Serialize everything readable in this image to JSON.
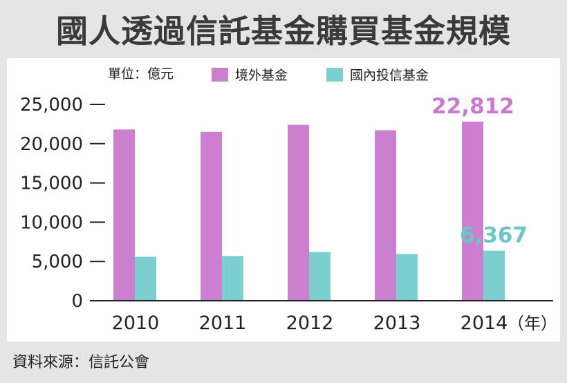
{
  "title": "國人透過信託基金購買基金規模",
  "source": "資料來源：信託公會",
  "colors": {
    "overseas": "#cc7fcf",
    "domestic": "#7ccfcf",
    "overseas_label": "#c87ad0",
    "domestic_label": "#6cc6c6",
    "axis": "#222222",
    "background": "#e5e5e5",
    "panel": "#ffffff"
  },
  "chart_data": {
    "type": "bar",
    "title": "國人透過信託基金購買基金規模",
    "unit_label": "單位：億元",
    "xlabel": "",
    "x_unit": "（年）",
    "ylabel": "",
    "ylim": [
      0,
      25000
    ],
    "yticks": [
      0,
      5000,
      10000,
      15000,
      20000,
      25000
    ],
    "ytick_labels": [
      "0",
      "5,000",
      "10,000",
      "15,000",
      "20,000",
      "25,000"
    ],
    "categories": [
      "2010",
      "2011",
      "2012",
      "2013",
      "2014"
    ],
    "series": [
      {
        "name": "境外基金",
        "values": [
          21800,
          21500,
          22400,
          21700,
          22812
        ]
      },
      {
        "name": "國內投信基金",
        "values": [
          5600,
          5700,
          6200,
          5950,
          6367
        ]
      }
    ],
    "annotations": [
      {
        "series": 0,
        "category": "2014",
        "text": "22,812"
      },
      {
        "series": 1,
        "category": "2014",
        "text": "6,367"
      }
    ],
    "grid": false,
    "legend": "top"
  }
}
